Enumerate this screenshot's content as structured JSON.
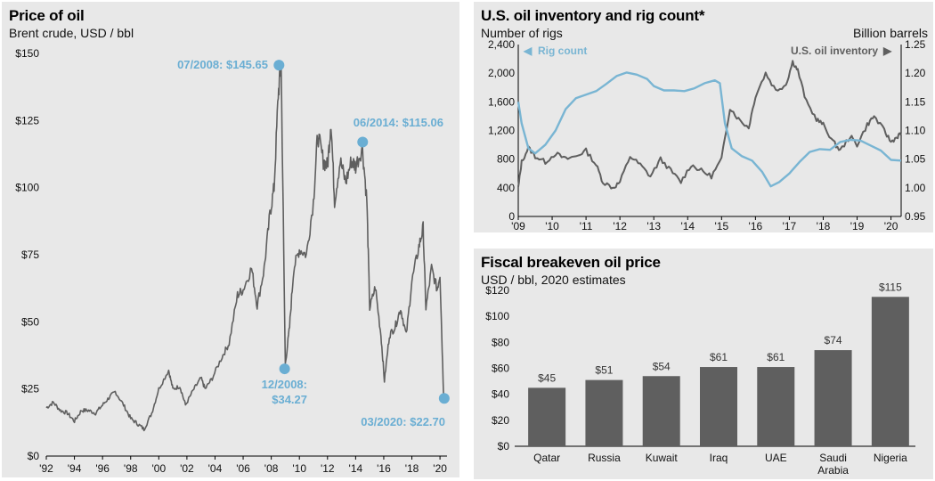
{
  "chart_data": [
    {
      "type": "line",
      "title": "Price of oil",
      "subtitle": "Brent crude, USD / bbl",
      "ylim": [
        0,
        150
      ],
      "xlim": [
        1992,
        2020.5
      ],
      "yticks": [
        0,
        25,
        50,
        75,
        100,
        125,
        150
      ],
      "ytick_labels": [
        "$0",
        "$25",
        "$50",
        "$75",
        "$100",
        "$125",
        "$150"
      ],
      "xticks": [
        1992,
        1994,
        1996,
        1998,
        2000,
        2002,
        2004,
        2006,
        2008,
        2010,
        2012,
        2014,
        2016,
        2018,
        2020
      ],
      "xtick_labels": [
        "'92",
        "'94",
        "'96",
        "'98",
        "'00",
        "'02",
        "'04",
        "'06",
        "'08",
        "'10",
        "'12",
        "'14",
        "'16",
        "'18",
        "'20"
      ],
      "series": [
        {
          "color": "#5f5f5f",
          "x": [
            1992.0,
            1992.5,
            1993.0,
            1993.5,
            1994.0,
            1994.5,
            1995.0,
            1995.5,
            1996.0,
            1996.5,
            1996.9,
            1997.5,
            1998.0,
            1998.5,
            1998.95,
            1999.5,
            2000.0,
            2000.7,
            2001.0,
            2001.5,
            2001.9,
            2002.5,
            2003.0,
            2003.3,
            2003.8,
            2004.5,
            2005.0,
            2005.6,
            2006.0,
            2006.6,
            2007.0,
            2007.5,
            2007.9,
            2008.2,
            2008.5,
            2008.7,
            2009.0,
            2009.3,
            2009.6,
            2010.0,
            2010.5,
            2011.0,
            2011.3,
            2011.7,
            2012.0,
            2012.25,
            2012.5,
            2012.9,
            2013.3,
            2013.7,
            2014.0,
            2014.48,
            2014.8,
            2015.0,
            2015.4,
            2015.8,
            2016.05,
            2016.4,
            2016.8,
            2017.2,
            2017.6,
            2018.0,
            2018.5,
            2018.8,
            2019.0,
            2019.4,
            2019.8,
            2020.0,
            2020.25
          ],
          "y": [
            18,
            20,
            17,
            16,
            13,
            17,
            17,
            16,
            19,
            22,
            24,
            19,
            14,
            12,
            10,
            16,
            25,
            32,
            25,
            26,
            19,
            25,
            29,
            25,
            29,
            37,
            42,
            60,
            62,
            70,
            56,
            70,
            90,
            100,
            135,
            145.65,
            34.27,
            48,
            70,
            77,
            75,
            95,
            120,
            110,
            108,
            125,
            95,
            110,
            102,
            110,
            108,
            115.06,
            95,
            55,
            63,
            45,
            28,
            45,
            48,
            55,
            45,
            65,
            78,
            85,
            55,
            70,
            62,
            68,
            22.7
          ]
        }
      ],
      "annotations": [
        {
          "label": "07/2008: $145.65",
          "x": 2008.55,
          "y": 145.65
        },
        {
          "label_line1": "12/2008:",
          "label_line2": "$34.27",
          "x": 2008.95,
          "y": 32.5
        },
        {
          "label": "06/2014: $115.06",
          "x": 2014.5,
          "y": 117
        },
        {
          "label": "03/2020: $22.70",
          "x": 2020.3,
          "y": 21.5
        }
      ]
    },
    {
      "type": "line",
      "title": "U.S. oil inventory and rig count*",
      "ylabel_left": "Number of rigs",
      "ylabel_right": "Billion barrels",
      "ylim_left": [
        0,
        2400
      ],
      "ylim_right": [
        0.95,
        1.25
      ],
      "yticks_left": [
        "0",
        "400",
        "800",
        "1,200",
        "1,600",
        "2,000",
        "2,400"
      ],
      "yticks_right": [
        "0.95",
        "1.00",
        "1.05",
        "1.10",
        "1.15",
        "1.20",
        "1.25"
      ],
      "xlim": [
        2009,
        2020.3
      ],
      "xtick_labels": [
        "'09",
        "'10",
        "'11",
        "'12",
        "'13",
        "'14",
        "'15",
        "'16",
        "'17",
        "'18",
        "'19",
        "'20"
      ],
      "series": [
        {
          "name": "Rig count",
          "axis": "left",
          "color": "#79b5d3",
          "x": [
            2009.0,
            2009.1,
            2009.3,
            2009.5,
            2009.8,
            2010.1,
            2010.4,
            2010.7,
            2011.0,
            2011.3,
            2011.6,
            2011.9,
            2012.2,
            2012.5,
            2012.8,
            2013.0,
            2013.3,
            2013.6,
            2013.9,
            2014.2,
            2014.5,
            2014.8,
            2014.95,
            2015.1,
            2015.3,
            2015.6,
            2015.9,
            2016.2,
            2016.45,
            2016.7,
            2017.0,
            2017.3,
            2017.6,
            2017.9,
            2018.2,
            2018.5,
            2018.8,
            2019.1,
            2019.4,
            2019.7,
            2020.0,
            2020.3
          ],
          "y": [
            1600,
            1300,
            950,
            880,
            1000,
            1200,
            1500,
            1650,
            1700,
            1750,
            1850,
            1960,
            2010,
            1980,
            1920,
            1820,
            1760,
            1760,
            1750,
            1790,
            1860,
            1900,
            1860,
            1300,
            950,
            840,
            780,
            620,
            420,
            480,
            600,
            760,
            900,
            940,
            930,
            1040,
            1070,
            1060,
            990,
            920,
            790,
            780
          ]
        },
        {
          "name": "U.S. oil inventory",
          "axis": "right",
          "color": "#5f5f5f",
          "x": [
            2009.0,
            2009.1,
            2009.3,
            2009.5,
            2009.8,
            2010.1,
            2010.4,
            2010.7,
            2011.0,
            2011.3,
            2011.5,
            2011.8,
            2012.0,
            2012.3,
            2012.6,
            2012.9,
            2013.2,
            2013.5,
            2013.8,
            2014.1,
            2014.4,
            2014.7,
            2015.0,
            2015.25,
            2015.5,
            2015.8,
            2016.0,
            2016.3,
            2016.6,
            2016.9,
            2017.1,
            2017.25,
            2017.5,
            2017.8,
            2018.0,
            2018.3,
            2018.5,
            2018.8,
            2019.0,
            2019.3,
            2019.5,
            2019.8,
            2020.0,
            2020.2,
            2020.3
          ],
          "y": [
            1.0,
            1.045,
            1.07,
            1.055,
            1.045,
            1.06,
            1.05,
            1.055,
            1.065,
            1.04,
            1.01,
            1.0,
            1.01,
            1.055,
            1.04,
            1.02,
            1.05,
            1.03,
            1.01,
            1.04,
            1.03,
            1.02,
            1.05,
            1.14,
            1.12,
            1.105,
            1.16,
            1.2,
            1.17,
            1.18,
            1.22,
            1.205,
            1.15,
            1.12,
            1.11,
            1.08,
            1.065,
            1.09,
            1.075,
            1.11,
            1.125,
            1.1,
            1.08,
            1.09,
            1.095
          ]
        }
      ]
    },
    {
      "type": "bar",
      "title": "Fiscal breakeven oil price",
      "subtitle": "USD / bbl, 2020 estimates",
      "ylim": [
        0,
        120
      ],
      "ytick_labels": [
        "$0",
        "$20",
        "$40",
        "$60",
        "$80",
        "$100",
        "$120"
      ],
      "categories": [
        "Qatar",
        "Russia",
        "Kuwait",
        "Iraq",
        "UAE",
        "Saudi Arabia",
        "Nigeria"
      ],
      "values": [
        45,
        51,
        54,
        61,
        61,
        74,
        115
      ],
      "value_labels": [
        "$45",
        "$51",
        "$54",
        "$61",
        "$61",
        "$74",
        "$115"
      ],
      "bar_color": "#5f5f5f"
    }
  ]
}
